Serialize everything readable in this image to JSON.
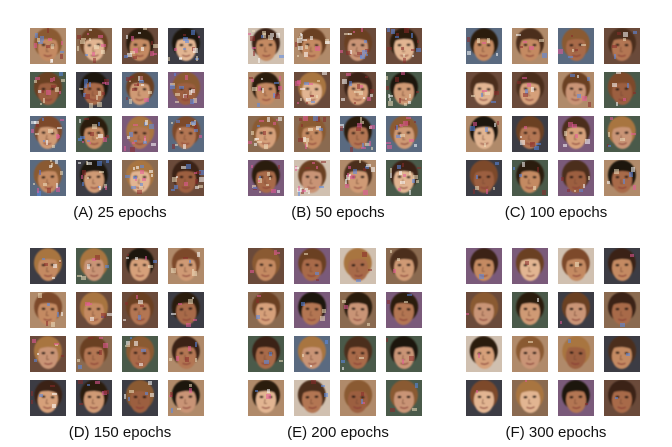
{
  "panels": [
    {
      "caption": "(A) 25 epochs",
      "quality": "noisy"
    },
    {
      "caption": "(B) 50 epochs",
      "quality": "noisy"
    },
    {
      "caption": "(C) 100 epochs",
      "quality": "blurry"
    },
    {
      "caption": "(D) 150 epochs",
      "quality": "blurry"
    },
    {
      "caption": "(E) 200 epochs",
      "quality": "clearer"
    },
    {
      "caption": "(F) 300 epochs",
      "quality": "clear"
    }
  ],
  "grid": {
    "rows": 4,
    "cols": 4
  },
  "palette": {
    "skin": [
      "#c48a62",
      "#b37652",
      "#d6a07a",
      "#a86a48",
      "#c99476",
      "#e2b592",
      "#9c5f40",
      "#cf9a74"
    ],
    "hair": [
      "#3a2418",
      "#6b3f22",
      "#8a5a30",
      "#1e1410",
      "#a8743f",
      "#4c2e1c",
      "#2c1a10",
      "#7d4a2a"
    ],
    "bg": [
      "#5a6a80",
      "#8a6a50",
      "#3c3c44",
      "#b08a6a",
      "#6a4a3a",
      "#d0c0b0",
      "#4a5a4a",
      "#7a5a7a"
    ]
  }
}
